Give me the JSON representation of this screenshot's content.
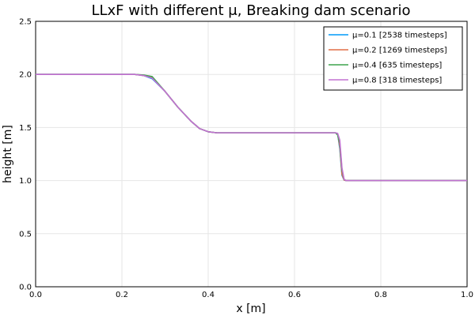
{
  "chart_data": {
    "type": "line",
    "title": "LLxF with different μ, Breaking dam scenario",
    "xlabel": "x [m]",
    "ylabel": "height [m]",
    "xlim": [
      0,
      1
    ],
    "ylim": [
      0,
      2.5
    ],
    "xticks": [
      "0.0",
      "0.2",
      "0.4",
      "0.6",
      "0.8",
      "1.0"
    ],
    "yticks": [
      "0.0",
      "0.5",
      "1.0",
      "1.5",
      "2.0",
      "2.5"
    ],
    "grid": true,
    "legend_position": "top-right",
    "series": [
      {
        "name": "μ=0.1 [2538 timesteps]",
        "color": "#009af9",
        "x": [
          0,
          0.23,
          0.25,
          0.27,
          0.3,
          0.33,
          0.36,
          0.38,
          0.4,
          0.42,
          0.5,
          0.6,
          0.695,
          0.7,
          0.705,
          0.71,
          0.715,
          0.72,
          0.8,
          1.0
        ],
        "y": [
          2.0,
          2.0,
          1.99,
          1.96,
          1.84,
          1.69,
          1.56,
          1.49,
          1.46,
          1.45,
          1.45,
          1.45,
          1.45,
          1.44,
          1.3,
          1.05,
          1.005,
          1.0,
          1.0,
          1.0
        ]
      },
      {
        "name": "μ=0.2 [1269 timesteps]",
        "color": "#e26f46",
        "x": [
          0,
          0.23,
          0.25,
          0.27,
          0.3,
          0.33,
          0.36,
          0.38,
          0.4,
          0.42,
          0.5,
          0.6,
          0.695,
          0.7,
          0.705,
          0.71,
          0.715,
          0.72,
          0.8,
          1.0
        ],
        "y": [
          2.0,
          2.0,
          1.99,
          1.97,
          1.84,
          1.69,
          1.56,
          1.49,
          1.46,
          1.45,
          1.45,
          1.45,
          1.45,
          1.44,
          1.32,
          1.06,
          1.005,
          1.0,
          1.0,
          1.0
        ]
      },
      {
        "name": "μ=0.4 [635 timesteps]",
        "color": "#3da44d",
        "x": [
          0,
          0.23,
          0.25,
          0.27,
          0.3,
          0.33,
          0.36,
          0.38,
          0.4,
          0.42,
          0.5,
          0.6,
          0.695,
          0.7,
          0.705,
          0.71,
          0.715,
          0.72,
          0.8,
          1.0
        ],
        "y": [
          2.0,
          2.0,
          1.995,
          1.98,
          1.84,
          1.69,
          1.56,
          1.49,
          1.46,
          1.45,
          1.45,
          1.45,
          1.45,
          1.43,
          1.35,
          1.1,
          1.01,
          1.0,
          1.0,
          1.0
        ]
      },
      {
        "name": "μ=0.8 [318 timesteps]",
        "color": "#c271d2",
        "x": [
          0,
          0.23,
          0.25,
          0.27,
          0.3,
          0.33,
          0.36,
          0.38,
          0.4,
          0.42,
          0.5,
          0.6,
          0.695,
          0.7,
          0.705,
          0.71,
          0.715,
          0.72,
          0.8,
          1.0
        ],
        "y": [
          2.0,
          2.0,
          1.99,
          1.965,
          1.84,
          1.69,
          1.56,
          1.49,
          1.46,
          1.45,
          1.45,
          1.45,
          1.45,
          1.445,
          1.38,
          1.12,
          1.01,
          1.0,
          1.0,
          1.0
        ]
      }
    ]
  }
}
